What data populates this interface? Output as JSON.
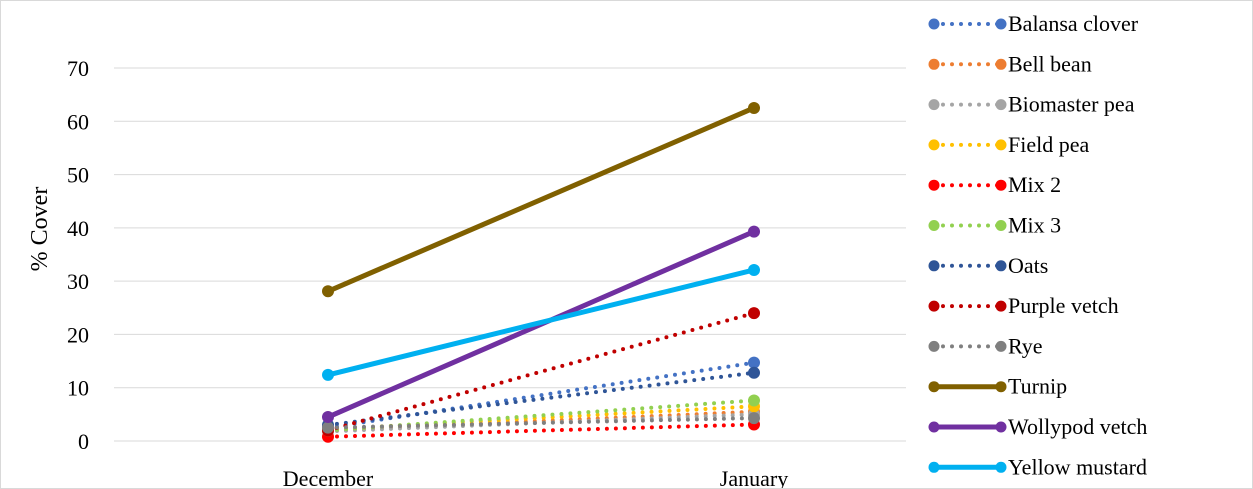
{
  "chart_data": {
    "type": "line",
    "title": "",
    "xlabel": "",
    "ylabel": "% Cover",
    "categories": [
      "December",
      "January"
    ],
    "ylim": [
      0,
      70
    ],
    "yticks": [
      0,
      10,
      20,
      30,
      40,
      50,
      60,
      70
    ],
    "grid": true,
    "legend_position": "right",
    "series": [
      {
        "name": "Balansa clover",
        "values": [
          2.5,
          14.7
        ],
        "color": "#4472c4",
        "style": "dotted"
      },
      {
        "name": "Bell bean",
        "values": [
          2.0,
          5.5
        ],
        "color": "#ed7d31",
        "style": "dotted"
      },
      {
        "name": "Biomaster pea",
        "values": [
          1.8,
          5.0
        ],
        "color": "#a5a5a5",
        "style": "dotted"
      },
      {
        "name": "Field pea",
        "values": [
          2.2,
          6.5
        ],
        "color": "#ffc000",
        "style": "dotted"
      },
      {
        "name": "Mix 2",
        "values": [
          0.8,
          3.1
        ],
        "color": "#ff0000",
        "style": "dotted"
      },
      {
        "name": "Mix 3",
        "values": [
          2.0,
          7.6
        ],
        "color": "#92d050",
        "style": "dotted"
      },
      {
        "name": "Oats",
        "values": [
          3.0,
          12.8
        ],
        "color": "#2f5597",
        "style": "dotted"
      },
      {
        "name": "Purple vetch",
        "values": [
          2.0,
          24.0
        ],
        "color": "#c00000",
        "style": "dotted"
      },
      {
        "name": "Rye",
        "values": [
          2.5,
          4.3
        ],
        "color": "#7f7f7f",
        "style": "dotted"
      },
      {
        "name": "Turnip",
        "values": [
          28.1,
          62.5
        ],
        "color": "#806000",
        "style": "solid"
      },
      {
        "name": "Wollypod vetch",
        "values": [
          4.5,
          39.3
        ],
        "color": "#7030a0",
        "style": "solid"
      },
      {
        "name": "Yellow mustard",
        "values": [
          12.4,
          32.1
        ],
        "color": "#00b0f0",
        "style": "solid"
      }
    ]
  }
}
